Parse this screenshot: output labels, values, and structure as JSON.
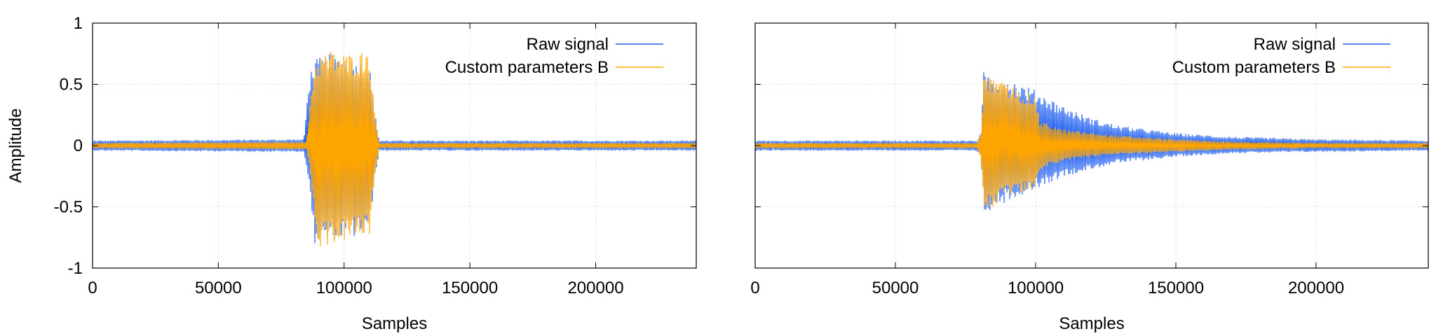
{
  "chart_data": [
    {
      "type": "line",
      "xlabel": "Samples",
      "ylabel": "Amplitude",
      "xlim": [
        0,
        240000
      ],
      "ylim": [
        -1,
        1
      ],
      "xticks": [
        0,
        50000,
        100000,
        150000,
        200000
      ],
      "xtick_labels": [
        "0",
        "50000",
        "100000",
        "150000",
        "200000"
      ],
      "yticks": [
        -1,
        -0.5,
        0,
        0.5,
        1
      ],
      "ytick_labels": [
        "-1",
        "-0.5",
        "0",
        "0.5",
        "1"
      ],
      "grid": true,
      "legend_position": "top-right",
      "series": [
        {
          "name": "Raw signal",
          "color": "#1f5ff0",
          "envelope": {
            "x": [
              0,
              84000,
              86000,
              88000,
              95000,
              100000,
              105000,
              110000,
              112000,
              114000,
              240000
            ],
            "upper": [
              0.04,
              0.05,
              0.55,
              0.7,
              0.75,
              0.72,
              0.7,
              0.68,
              0.3,
              0.04,
              0.04
            ],
            "lower": [
              -0.04,
              -0.05,
              -0.3,
              -0.8,
              -0.78,
              -0.75,
              -0.75,
              -0.72,
              -0.3,
              -0.04,
              -0.04
            ]
          }
        },
        {
          "name": "Custom parameters B",
          "color": "#ffa500",
          "envelope": {
            "x": [
              0,
              85000,
              87000,
              89000,
              95000,
              100000,
              105000,
              110000,
              112000,
              114000,
              240000
            ],
            "upper": [
              0.02,
              0.03,
              0.5,
              0.72,
              0.78,
              0.75,
              0.75,
              0.8,
              0.3,
              0.02,
              0.02
            ],
            "lower": [
              -0.02,
              -0.03,
              -0.3,
              -0.85,
              -0.8,
              -0.78,
              -0.75,
              -0.75,
              -0.3,
              -0.02,
              -0.02
            ]
          }
        }
      ]
    },
    {
      "type": "line",
      "xlabel": "Samples",
      "ylabel": "",
      "xlim": [
        0,
        240000
      ],
      "ylim": [
        -1,
        1
      ],
      "xticks": [
        0,
        50000,
        100000,
        150000,
        200000
      ],
      "xtick_labels": [
        "0",
        "50000",
        "100000",
        "150000",
        "200000"
      ],
      "yticks": [
        -1,
        -0.5,
        0,
        0.5,
        1
      ],
      "ytick_labels": [],
      "grid": true,
      "legend_position": "top-right",
      "series": [
        {
          "name": "Raw signal",
          "color": "#1f5ff0",
          "envelope": {
            "x": [
              0,
              79000,
              80500,
              81500,
              90000,
              100000,
              110000,
              120000,
              130000,
              150000,
              170000,
              200000,
              240000
            ],
            "upper": [
              0.04,
              0.04,
              0.1,
              0.6,
              0.55,
              0.45,
              0.32,
              0.22,
              0.16,
              0.1,
              0.07,
              0.05,
              0.04
            ],
            "lower": [
              -0.04,
              -0.04,
              -0.1,
              -0.55,
              -0.45,
              -0.35,
              -0.25,
              -0.19,
              -0.14,
              -0.09,
              -0.06,
              -0.05,
              -0.04
            ]
          }
        },
        {
          "name": "Custom parameters B",
          "color": "#ffa500",
          "envelope": {
            "x": [
              0,
              79000,
              80500,
              81500,
              90000,
              100000,
              101500,
              110000,
              130000,
              150000,
              170000,
              200000,
              240000
            ],
            "upper": [
              0.02,
              0.02,
              0.1,
              0.58,
              0.5,
              0.4,
              0.2,
              0.13,
              0.08,
              0.05,
              0.03,
              0.02,
              0.02
            ],
            "lower": [
              -0.02,
              -0.02,
              -0.1,
              -0.55,
              -0.42,
              -0.35,
              -0.2,
              -0.12,
              -0.07,
              -0.05,
              -0.03,
              -0.02,
              -0.02
            ]
          }
        }
      ]
    }
  ]
}
